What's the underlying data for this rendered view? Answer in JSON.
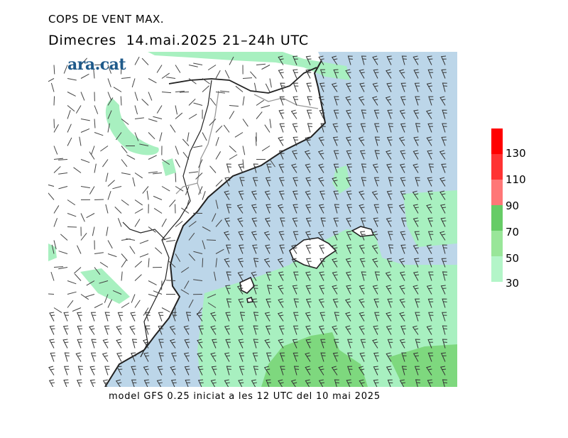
{
  "title": "COPS DE VENT MAX.",
  "subtitle": "Dimecres  14.mai.2025 21–24h UTC",
  "logo": "ara.cat",
  "footer": "model GFS 0.25 iniciat a les 12 UTC del 10 mai 2025",
  "legend": {
    "ticks": [
      "130",
      "110",
      "90",
      "70",
      "50",
      "30"
    ],
    "colors": [
      "#ff0000",
      "#ff3333",
      "#ff7777",
      "#66cc66",
      "#99e699",
      "#b3f5c8"
    ]
  },
  "colors": {
    "sea": "#bcd6e9",
    "land": "#ffffff",
    "gust_30_50": "#a8f0c0",
    "gust_50_70": "#7ed87e",
    "coast": "#222222",
    "border": "#9a9a9a"
  }
}
